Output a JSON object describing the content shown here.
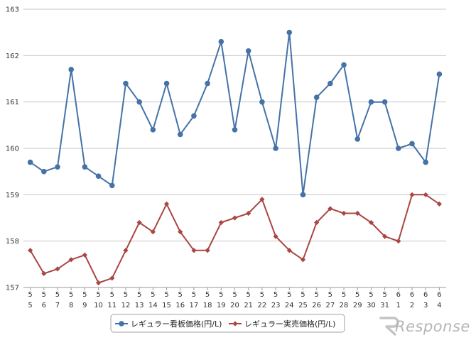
{
  "chart_data": {
    "type": "line",
    "categories": [
      [
        "5",
        "5"
      ],
      [
        "5",
        "6"
      ],
      [
        "5",
        "7"
      ],
      [
        "5",
        "8"
      ],
      [
        "5",
        "9"
      ],
      [
        "5",
        "10"
      ],
      [
        "5",
        "11"
      ],
      [
        "5",
        "12"
      ],
      [
        "5",
        "13"
      ],
      [
        "5",
        "14"
      ],
      [
        "5",
        "15"
      ],
      [
        "5",
        "16"
      ],
      [
        "5",
        "17"
      ],
      [
        "5",
        "18"
      ],
      [
        "5",
        "19"
      ],
      [
        "5",
        "20"
      ],
      [
        "5",
        "21"
      ],
      [
        "5",
        "22"
      ],
      [
        "5",
        "23"
      ],
      [
        "5",
        "24"
      ],
      [
        "5",
        "25"
      ],
      [
        "5",
        "26"
      ],
      [
        "5",
        "27"
      ],
      [
        "5",
        "28"
      ],
      [
        "5",
        "29"
      ],
      [
        "5",
        "30"
      ],
      [
        "5",
        "31"
      ],
      [
        "6",
        "1"
      ],
      [
        "6",
        "2"
      ],
      [
        "6",
        "3"
      ],
      [
        "6",
        "4"
      ]
    ],
    "yticks": [
      "157",
      "158",
      "159",
      "160",
      "161",
      "162",
      "163"
    ],
    "ylim": [
      157,
      163
    ],
    "grid": true,
    "legend_position": "bottom",
    "series": [
      {
        "name": "レギュラー看板価格(円/L)",
        "color": "#4572a7",
        "marker": "circle",
        "values": [
          159.7,
          159.5,
          159.6,
          161.7,
          159.6,
          159.4,
          159.2,
          161.4,
          161.0,
          160.4,
          161.4,
          160.3,
          160.7,
          161.4,
          162.3,
          160.4,
          162.1,
          161.0,
          160.0,
          162.5,
          159.0,
          161.1,
          161.4,
          161.8,
          160.2,
          161.0,
          161.0,
          160.0,
          160.1,
          159.7,
          161.6
        ]
      },
      {
        "name": "レギュラー実売価格(円/L)",
        "color": "#aa4643",
        "marker": "diamond",
        "values": [
          157.8,
          157.3,
          157.4,
          157.6,
          157.7,
          157.1,
          157.2,
          157.8,
          158.4,
          158.2,
          158.8,
          158.2,
          157.8,
          157.8,
          158.4,
          158.5,
          158.6,
          158.9,
          158.1,
          157.8,
          157.6,
          158.4,
          158.7,
          158.6,
          158.6,
          158.4,
          158.1,
          158.0,
          159.0,
          159.0,
          158.8
        ]
      }
    ]
  },
  "watermark": "Response."
}
